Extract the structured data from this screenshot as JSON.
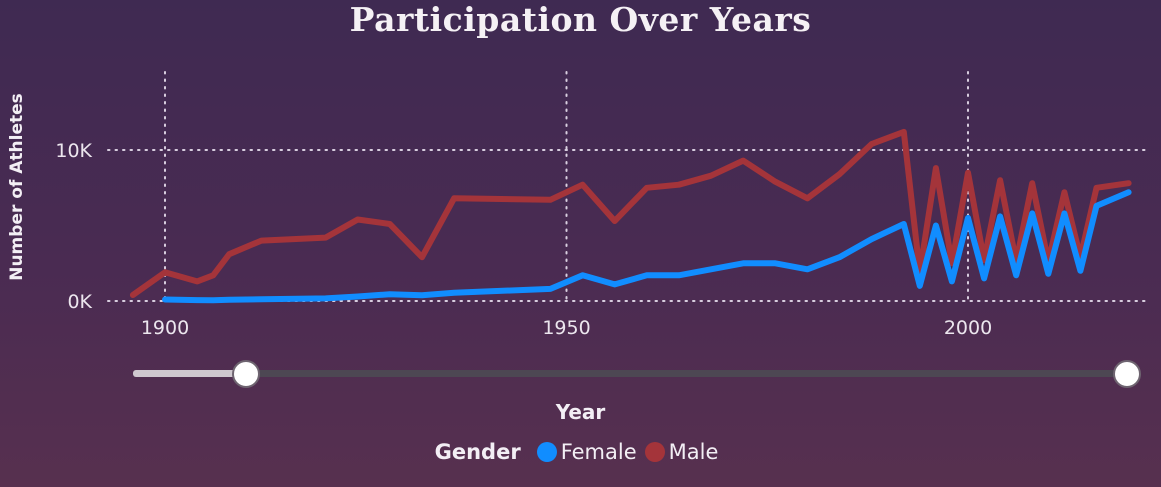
{
  "chart_data": {
    "type": "line",
    "title": "Participation Over Years",
    "xlabel": "Year",
    "ylabel": "Number of Athletes",
    "xlim": [
      1896,
      2021
    ],
    "ylim": [
      0,
      15000
    ],
    "x_ticks": [
      {
        "value": 1900,
        "label": "1900"
      },
      {
        "value": 1950,
        "label": "1950"
      },
      {
        "value": 2000,
        "label": "2000"
      }
    ],
    "y_ticks": [
      {
        "value": 0,
        "label": "0K"
      },
      {
        "value": 10000,
        "label": "10K"
      }
    ],
    "grid": true,
    "legend_title": "Gender",
    "legend_position": "bottom",
    "series": [
      {
        "name": "Female",
        "color": "#118dff",
        "points": [
          [
            1900,
            100
          ],
          [
            1904,
            60
          ],
          [
            1906,
            50
          ],
          [
            1908,
            80
          ],
          [
            1912,
            120
          ],
          [
            1920,
            170
          ],
          [
            1924,
            300
          ],
          [
            1928,
            450
          ],
          [
            1932,
            380
          ],
          [
            1936,
            550
          ],
          [
            1948,
            800
          ],
          [
            1952,
            1700
          ],
          [
            1956,
            1100
          ],
          [
            1960,
            1700
          ],
          [
            1964,
            1700
          ],
          [
            1968,
            2100
          ],
          [
            1972,
            2500
          ],
          [
            1976,
            2500
          ],
          [
            1980,
            2100
          ],
          [
            1984,
            2900
          ],
          [
            1988,
            4100
          ],
          [
            1992,
            5100
          ],
          [
            1994,
            1000
          ],
          [
            1996,
            5000
          ],
          [
            1998,
            1300
          ],
          [
            2000,
            5500
          ],
          [
            2002,
            1500
          ],
          [
            2004,
            5600
          ],
          [
            2006,
            1700
          ],
          [
            2008,
            5800
          ],
          [
            2010,
            1800
          ],
          [
            2012,
            5800
          ],
          [
            2014,
            2000
          ],
          [
            2016,
            6300
          ],
          [
            2020,
            7200
          ]
        ]
      },
      {
        "name": "Male",
        "color": "#a4343a",
        "points": [
          [
            1896,
            400
          ],
          [
            1900,
            1900
          ],
          [
            1904,
            1300
          ],
          [
            1906,
            1700
          ],
          [
            1908,
            3100
          ],
          [
            1912,
            4000
          ],
          [
            1920,
            4200
          ],
          [
            1924,
            5400
          ],
          [
            1928,
            5100
          ],
          [
            1932,
            2900
          ],
          [
            1936,
            6800
          ],
          [
            1948,
            6700
          ],
          [
            1952,
            7700
          ],
          [
            1956,
            5300
          ],
          [
            1960,
            7500
          ],
          [
            1964,
            7700
          ],
          [
            1968,
            8300
          ],
          [
            1972,
            9300
          ],
          [
            1976,
            7900
          ],
          [
            1980,
            6800
          ],
          [
            1984,
            8400
          ],
          [
            1988,
            10400
          ],
          [
            1992,
            11200
          ],
          [
            1994,
            1900
          ],
          [
            1996,
            8800
          ],
          [
            1998,
            2500
          ],
          [
            2000,
            8500
          ],
          [
            2002,
            2700
          ],
          [
            2004,
            8000
          ],
          [
            2006,
            2600
          ],
          [
            2008,
            7800
          ],
          [
            2010,
            2600
          ],
          [
            2012,
            7200
          ],
          [
            2014,
            2900
          ],
          [
            2016,
            7500
          ],
          [
            2020,
            7800
          ]
        ]
      }
    ]
  },
  "slider": {
    "start_fraction": 0.115,
    "end_fraction": 1.0
  }
}
